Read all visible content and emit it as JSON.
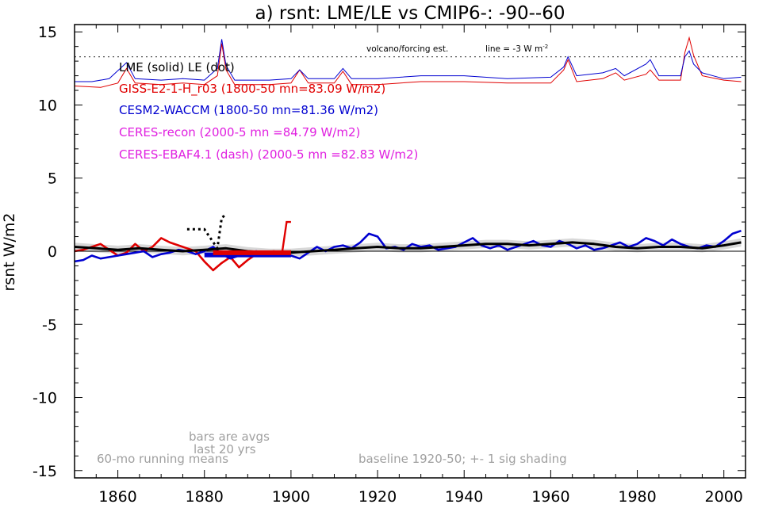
{
  "chart_data": {
    "type": "line",
    "title": "a) rsnt: LME/LE vs CMIP6-: -90--60",
    "ylabel": "rsnt W/m2",
    "xlabel": "",
    "xlim": [
      1850,
      2005
    ],
    "ylim": [
      -15.5,
      15.5
    ],
    "xticks": [
      1860,
      1880,
      1900,
      1920,
      1940,
      1960,
      1980,
      2000
    ],
    "yticks": [
      15,
      10,
      5,
      0,
      -5,
      -10,
      -15
    ],
    "grid": false,
    "legend_placement": "top-left",
    "legend": [
      {
        "text": "LME (solid)   LE (dot)",
        "color": "#000000"
      },
      {
        "text": "GISS-E2-1-H_r03 (1800-50 mn=83.09 W/m2)",
        "color": "#e00000"
      },
      {
        "text": "CESM2-WACCM (1800-50 mn=81.36 W/m2)",
        "color": "#0000d0"
      },
      {
        "text": "CERES-recon (2000-5 mn =84.79 W/m2)",
        "color": "#e020e0"
      },
      {
        "text": "CERES-EBAF4.1 (dash) (2000-5 mn =82.83 W/m2)",
        "color": "#e020e0"
      }
    ],
    "annotations": {
      "volcano_label": "volcano/forcing est.",
      "line_label": "line = -3 W m",
      "line_label_sup": "-2",
      "bars_note_1": "bars are avgs",
      "bars_note_2": "last 20 yrs",
      "running_note": "60-mo running means",
      "baseline_note": "baseline 1920-50; +- 1 sig shading"
    },
    "reference_line_y": 13.3,
    "series": [
      {
        "name": "GISS-E2-1-H_r03",
        "color": "#e00000",
        "x": [
          1850,
          1852,
          1854,
          1856,
          1858,
          1860,
          1862,
          1864,
          1866,
          1868,
          1870,
          1872,
          1874,
          1876,
          1878,
          1880,
          1882,
          1884,
          1886,
          1888,
          1890,
          1892,
          1894,
          1896,
          1898,
          1900
        ],
        "y": [
          0,
          0.1,
          0.3,
          0.5,
          0.1,
          -0.3,
          -0.1,
          0.5,
          0,
          0.3,
          0.9,
          0.6,
          0.4,
          0.2,
          0,
          -0.7,
          -1.3,
          -0.8,
          -0.4,
          -1.1,
          -0.6,
          -0.2,
          -0.1,
          0,
          -0.1,
          0
        ]
      },
      {
        "name": "CESM2-WACCM",
        "color": "#0000d0",
        "x": [
          1850,
          1852,
          1854,
          1856,
          1858,
          1860,
          1862,
          1864,
          1866,
          1868,
          1870,
          1872,
          1874,
          1876,
          1878,
          1880,
          1882,
          1884,
          1886,
          1888,
          1890,
          1892,
          1894,
          1896,
          1898,
          1900,
          1902,
          1904,
          1906,
          1908,
          1910,
          1912,
          1914,
          1916,
          1918,
          1920,
          1922,
          1924,
          1926,
          1928,
          1930,
          1932,
          1934,
          1936,
          1938,
          1940,
          1942,
          1944,
          1946,
          1948,
          1950,
          1952,
          1954,
          1956,
          1958,
          1960,
          1962,
          1964,
          1966,
          1968,
          1970,
          1972,
          1974,
          1976,
          1978,
          1980,
          1982,
          1984,
          1986,
          1988,
          1990,
          1992,
          1994,
          1996,
          1998,
          2000,
          2002,
          2004
        ],
        "y": [
          -0.7,
          -0.6,
          -0.3,
          -0.5,
          -0.4,
          -0.3,
          -0.2,
          -0.1,
          0,
          -0.4,
          -0.2,
          -0.1,
          0.1,
          0,
          -0.2,
          0,
          0.3,
          -0.2,
          -0.5,
          -0.3,
          -0.1,
          0,
          -0.2,
          -0.1,
          0,
          -0.3,
          -0.5,
          -0.1,
          0.3,
          0,
          0.3,
          0.4,
          0.2,
          0.6,
          1.2,
          1,
          0.2,
          0.3,
          0.1,
          0.5,
          0.3,
          0.4,
          0.1,
          0.2,
          0.3,
          0.6,
          0.9,
          0.4,
          0.2,
          0.4,
          0.1,
          0.3,
          0.5,
          0.7,
          0.4,
          0.3,
          0.7,
          0.5,
          0.2,
          0.4,
          0.1,
          0.2,
          0.4,
          0.6,
          0.3,
          0.5,
          0.9,
          0.7,
          0.4,
          0.8,
          0.5,
          0.3,
          0.2,
          0.4,
          0.3,
          0.7,
          1.2,
          1.4
        ]
      },
      {
        "name": "LME",
        "color": "#000000",
        "x": [
          1850,
          1855,
          1860,
          1865,
          1870,
          1875,
          1880,
          1885,
          1890,
          1895,
          1900,
          1905,
          1910,
          1915,
          1920,
          1925,
          1930,
          1935,
          1940,
          1945,
          1950,
          1955,
          1960,
          1965,
          1970,
          1975,
          1980,
          1985,
          1990,
          1995,
          2000,
          2004
        ],
        "y": [
          0.3,
          0.2,
          0.1,
          0.2,
          0.1,
          0,
          0.1,
          0.2,
          0,
          -0.1,
          -0.1,
          0,
          0.1,
          0.2,
          0.3,
          0.2,
          0.2,
          0.3,
          0.4,
          0.5,
          0.5,
          0.4,
          0.5,
          0.6,
          0.5,
          0.3,
          0.2,
          0.3,
          0.3,
          0.2,
          0.4,
          0.6
        ]
      }
    ],
    "le_dotted": {
      "x": [
        1876,
        1880,
        1883,
        1884,
        1885
      ],
      "y": [
        1.5,
        1.5,
        0.2,
        2.3,
        2.5
      ]
    },
    "bars": [
      {
        "name": "CESM2-WACCM",
        "color": "#0000d0",
        "x0": 1880,
        "x1": 1900,
        "y": -0.25
      },
      {
        "name": "GISS-E2-1-H_r03",
        "color": "#e00000",
        "x0": 1882,
        "x1": 1900,
        "y": -0.1
      }
    ],
    "red_spike": {
      "x": [
        1898,
        1899,
        1900
      ],
      "y": [
        0,
        2,
        2
      ]
    },
    "volcano_red": [
      [
        1850,
        11.3
      ],
      [
        1856,
        11.2
      ],
      [
        1860,
        11.5
      ],
      [
        1862,
        12.5
      ],
      [
        1864,
        11.5
      ],
      [
        1870,
        11.4
      ],
      [
        1875,
        11.5
      ],
      [
        1880,
        11.4
      ],
      [
        1883,
        12
      ],
      [
        1884,
        14.2
      ],
      [
        1885,
        12.4
      ],
      [
        1887,
        11.4
      ],
      [
        1895,
        11.4
      ],
      [
        1900,
        11.5
      ],
      [
        1902,
        12.4
      ],
      [
        1904,
        11.5
      ],
      [
        1910,
        11.5
      ],
      [
        1912,
        12.3
      ],
      [
        1914,
        11.4
      ],
      [
        1920,
        11.4
      ],
      [
        1930,
        11.6
      ],
      [
        1940,
        11.6
      ],
      [
        1950,
        11.5
      ],
      [
        1960,
        11.5
      ],
      [
        1963,
        12.4
      ],
      [
        1964,
        13.1
      ],
      [
        1966,
        11.6
      ],
      [
        1972,
        11.8
      ],
      [
        1975,
        12.2
      ],
      [
        1977,
        11.7
      ],
      [
        1982,
        12.1
      ],
      [
        1983,
        12.4
      ],
      [
        1985,
        11.7
      ],
      [
        1990,
        11.7
      ],
      [
        1991,
        13.6
      ],
      [
        1992,
        14.6
      ],
      [
        1993,
        13.4
      ],
      [
        1995,
        12
      ],
      [
        2000,
        11.7
      ],
      [
        2004,
        11.6
      ]
    ],
    "volcano_blue": [
      [
        1850,
        11.6
      ],
      [
        1854,
        11.6
      ],
      [
        1858,
        11.8
      ],
      [
        1862,
        12.9
      ],
      [
        1864,
        11.8
      ],
      [
        1870,
        11.7
      ],
      [
        1875,
        11.8
      ],
      [
        1880,
        11.7
      ],
      [
        1883,
        12.5
      ],
      [
        1884,
        14.5
      ],
      [
        1885,
        12.7
      ],
      [
        1887,
        11.7
      ],
      [
        1895,
        11.7
      ],
      [
        1900,
        11.8
      ],
      [
        1902,
        12.4
      ],
      [
        1904,
        11.8
      ],
      [
        1910,
        11.8
      ],
      [
        1912,
        12.5
      ],
      [
        1914,
        11.8
      ],
      [
        1920,
        11.8
      ],
      [
        1930,
        12
      ],
      [
        1940,
        12
      ],
      [
        1950,
        11.8
      ],
      [
        1960,
        11.9
      ],
      [
        1963,
        12.6
      ],
      [
        1964,
        13.3
      ],
      [
        1966,
        12
      ],
      [
        1972,
        12.2
      ],
      [
        1975,
        12.5
      ],
      [
        1977,
        12
      ],
      [
        1982,
        12.8
      ],
      [
        1983,
        13.1
      ],
      [
        1985,
        12
      ],
      [
        1990,
        12
      ],
      [
        1991,
        13.3
      ],
      [
        1992,
        13.7
      ],
      [
        1993,
        12.8
      ],
      [
        1995,
        12.2
      ],
      [
        2000,
        11.8
      ],
      [
        2004,
        11.9
      ]
    ]
  }
}
